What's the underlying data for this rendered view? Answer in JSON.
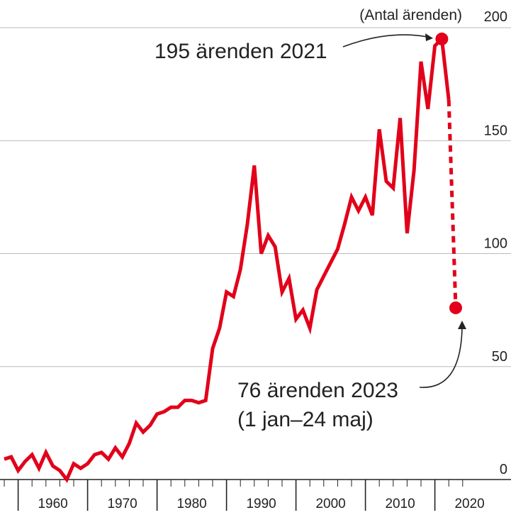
{
  "chart_data": {
    "type": "line",
    "title": "",
    "unit_label": "(Antal ärenden)",
    "ylim": [
      0,
      200
    ],
    "xlim": [
      1958,
      2025
    ],
    "y_ticks": [
      0,
      50,
      100,
      150,
      200
    ],
    "y_tick_labels": [
      "0",
      "50",
      "100",
      "150",
      "200"
    ],
    "x_ticks": [
      1960,
      1970,
      1980,
      1990,
      2000,
      2010,
      2020
    ],
    "x_tick_labels": [
      "1960",
      "1970",
      "1980",
      "1990",
      "2000",
      "2010",
      "2020"
    ],
    "grid": true,
    "series": [
      {
        "style": "solid",
        "color": "#e2001a",
        "x": [
          1958,
          1959,
          1960,
          1961,
          1962,
          1963,
          1964,
          1965,
          1966,
          1967,
          1968,
          1969,
          1970,
          1971,
          1972,
          1973,
          1974,
          1975,
          1976,
          1977,
          1978,
          1979,
          1980,
          1981,
          1982,
          1983,
          1984,
          1985,
          1986,
          1987,
          1988,
          1989,
          1990,
          1991,
          1992,
          1993,
          1994,
          1995,
          1996,
          1997,
          1998,
          1999,
          2000,
          2001,
          2002,
          2003,
          2004,
          2005,
          2006,
          2007,
          2008,
          2009,
          2010,
          2011,
          2012,
          2013,
          2014,
          2015,
          2016,
          2017,
          2018,
          2019,
          2020,
          2021,
          2022
        ],
        "y": [
          9,
          10,
          4,
          8,
          11,
          5,
          12,
          6,
          4,
          0,
          7,
          5,
          7,
          11,
          12,
          9,
          14,
          10,
          16,
          25,
          21,
          24,
          29,
          30,
          32,
          32,
          35,
          35,
          34,
          35,
          58,
          67,
          83,
          81,
          93,
          113,
          139,
          100,
          108,
          103,
          83,
          89,
          71,
          75,
          67,
          84,
          90,
          96,
          102,
          113,
          125,
          119,
          125,
          117,
          155,
          132,
          129,
          160,
          109,
          137,
          185,
          164,
          192,
          195,
          168
        ]
      },
      {
        "style": "dotted",
        "color": "#e2001a",
        "x": [
          2022,
          2023
        ],
        "y": [
          168,
          76
        ]
      }
    ],
    "points": [
      {
        "x": 2021,
        "y": 195
      },
      {
        "x": 2023,
        "y": 76
      }
    ],
    "annotations": [
      {
        "text": "195 ärenden 2021",
        "x": 2021,
        "y": 195
      },
      {
        "text": "76 ärenden 2023",
        "text2": "(1 jan–24 maj)",
        "x": 2023,
        "y": 76
      }
    ]
  },
  "colors": {
    "line": "#e2001a",
    "grid": "#bbbbbb",
    "text": "#222222"
  }
}
